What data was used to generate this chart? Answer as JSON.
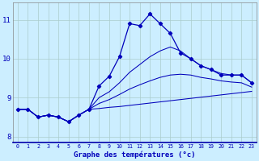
{
  "xlabel": "Graphe des températures (°c)",
  "background_color": "#cceeff",
  "grid_color": "#aacccc",
  "line_color": "#0000bb",
  "hours": [
    0,
    1,
    2,
    3,
    4,
    5,
    6,
    7,
    8,
    9,
    10,
    11,
    12,
    13,
    14,
    15,
    16,
    17,
    18,
    19,
    20,
    21,
    22,
    23
  ],
  "temp_main": [
    8.7,
    8.7,
    8.5,
    8.55,
    8.5,
    8.38,
    8.55,
    8.7,
    9.3,
    9.55,
    10.05,
    10.9,
    10.85,
    11.15,
    10.9,
    10.65,
    10.15,
    10.0,
    9.82,
    9.72,
    9.58,
    9.58,
    9.58,
    9.38
  ],
  "temp_min": [
    8.7,
    8.7,
    8.5,
    8.55,
    8.5,
    8.38,
    8.55,
    8.7,
    8.72,
    8.75,
    8.77,
    8.8,
    8.83,
    8.86,
    8.89,
    8.92,
    8.95,
    8.98,
    9.01,
    9.04,
    9.07,
    9.1,
    9.13,
    9.16
  ],
  "temp_max": [
    8.7,
    8.7,
    8.5,
    8.55,
    8.5,
    8.38,
    8.55,
    8.7,
    9.0,
    9.15,
    9.38,
    9.65,
    9.85,
    10.05,
    10.2,
    10.3,
    10.2,
    10.0,
    9.82,
    9.72,
    9.62,
    9.58,
    9.58,
    9.38
  ],
  "temp_avg": [
    8.7,
    8.7,
    8.5,
    8.55,
    8.5,
    8.38,
    8.55,
    8.7,
    8.85,
    8.95,
    9.08,
    9.22,
    9.33,
    9.43,
    9.52,
    9.58,
    9.6,
    9.58,
    9.52,
    9.48,
    9.43,
    9.4,
    9.38,
    9.27
  ],
  "ylim": [
    7.85,
    11.45
  ],
  "yticks": [
    8,
    9,
    10,
    11
  ],
  "xticks": [
    0,
    1,
    2,
    3,
    4,
    5,
    6,
    7,
    8,
    9,
    10,
    11,
    12,
    13,
    14,
    15,
    16,
    17,
    18,
    19,
    20,
    21,
    22,
    23
  ]
}
